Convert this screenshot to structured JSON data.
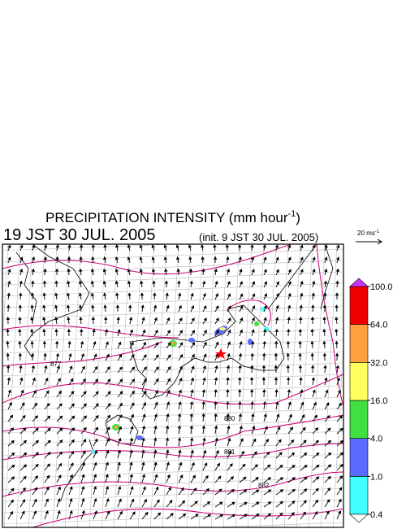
{
  "title": {
    "text": "PRECIPITATION INTENSITY (mm hour",
    "superscript": "-1",
    "end": ")"
  },
  "valid_time": "19 JST 30 JUL. 2005",
  "init_time": "(init. 9 JST 30 JUL. 2005)",
  "vector_key": {
    "text": "20 ms",
    "superscript": "-1"
  },
  "contour_labels": [
    "877",
    "880",
    "881",
    "882"
  ],
  "colorbar": {
    "levels": [
      {
        "value": 0.4,
        "label": "0.4"
      },
      {
        "value": 1,
        "label": "1.0"
      },
      {
        "value": 4,
        "label": "4.0"
      },
      {
        "value": 16,
        "label": "16.0"
      },
      {
        "value": 32,
        "label": "32.0"
      },
      {
        "value": 64,
        "label": "64.0"
      },
      {
        "value": 100,
        "label": "100.0"
      }
    ],
    "colors": [
      "#40ffff",
      "#5a6bff",
      "#40e040",
      "#ffff60",
      "#ff9f40",
      "#ee0000"
    ],
    "under_color": "#ffffff",
    "over_color": "#cc33ff"
  }
}
